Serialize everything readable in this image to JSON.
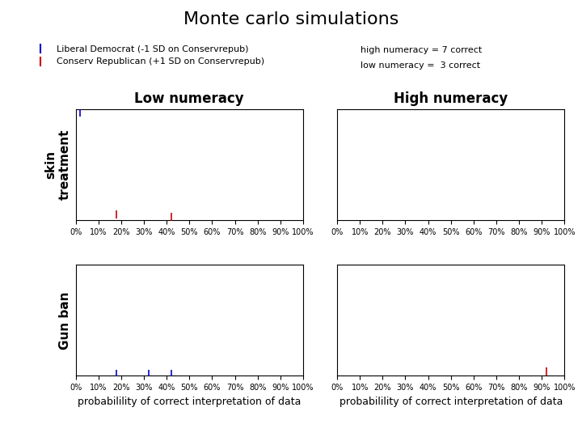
{
  "title": "Monte carlo simulations",
  "legend": "upper left",
  "annotations": [
    "high numeracy = 7 correct",
    "low numeracy =  3 correct"
  ],
  "chart_data": [
    {
      "type": "scatter",
      "title": "Low numeracy",
      "ylabel": "skin\ntreatment",
      "xlim": [
        0,
        1
      ],
      "ylim": [
        0,
        1
      ],
      "tick_labels": "x",
      "marker": "vertical line",
      "xticks": [
        {
          "value": 0.0,
          "label": "0%"
        },
        {
          "value": 0.1,
          "label": "10%"
        },
        {
          "value": 0.2,
          "label": "20%"
        },
        {
          "value": 0.3,
          "label": "30%"
        },
        {
          "value": 0.4,
          "label": "40%"
        },
        {
          "value": 0.5,
          "label": "50%"
        },
        {
          "value": 0.6,
          "label": "60%"
        },
        {
          "value": 0.7,
          "label": "70%"
        },
        {
          "value": 0.8,
          "label": "80%"
        },
        {
          "value": 0.9,
          "label": "90%"
        },
        {
          "value": 1.0,
          "label": "100%"
        }
      ],
      "series": [
        {
          "name": "Liberal Democrat (-1 SD on Conservrepub)",
          "color": "#0000cc",
          "x": [
            0.02
          ],
          "values": [
            0.97
          ]
        },
        {
          "name": "Conserv Republican (+1 SD on Conservrepub)",
          "color": "#cc0000",
          "x": [
            0.18,
            0.42
          ],
          "values": [
            0.05,
            0.03
          ]
        }
      ]
    },
    {
      "type": "scatter",
      "title": "High numeracy",
      "xlim": [
        0,
        1
      ],
      "ylim": [
        0,
        1
      ],
      "tick_labels": "x",
      "marker": "vertical line",
      "xticks": [
        {
          "value": 0.0,
          "label": "0%"
        },
        {
          "value": 0.1,
          "label": "10%"
        },
        {
          "value": 0.2,
          "label": "20%"
        },
        {
          "value": 0.3,
          "label": "30%"
        },
        {
          "value": 0.4,
          "label": "40%"
        },
        {
          "value": 0.5,
          "label": "50%"
        },
        {
          "value": 0.6,
          "label": "60%"
        },
        {
          "value": 0.7,
          "label": "70%"
        },
        {
          "value": 0.8,
          "label": "80%"
        },
        {
          "value": 0.9,
          "label": "90%"
        },
        {
          "value": 1.0,
          "label": "100%"
        }
      ],
      "series": []
    },
    {
      "type": "scatter",
      "ylabel": "Gun ban",
      "xlabel": "probabilility of correct interpretation of data",
      "xlim": [
        0,
        1
      ],
      "ylim": [
        0,
        1
      ],
      "tick_labels": "x",
      "marker": "vertical line",
      "xticks": [
        {
          "value": 0.0,
          "label": "0%"
        },
        {
          "value": 0.1,
          "label": "10%"
        },
        {
          "value": 0.2,
          "label": "20%"
        },
        {
          "value": 0.3,
          "label": "30%"
        },
        {
          "value": 0.4,
          "label": "40%"
        },
        {
          "value": 0.5,
          "label": "50%"
        },
        {
          "value": 0.6,
          "label": "60%"
        },
        {
          "value": 0.7,
          "label": "70%"
        },
        {
          "value": 0.8,
          "label": "80%"
        },
        {
          "value": 0.9,
          "label": "90%"
        },
        {
          "value": 1.0,
          "label": "100%"
        }
      ],
      "series": [
        {
          "name": "Liberal Democrat (-1 SD on Conservrepub)",
          "color": "#0000cc",
          "x": [
            0.18,
            0.32,
            0.42
          ],
          "values": [
            0.02,
            0.02,
            0.02
          ]
        }
      ]
    },
    {
      "type": "scatter",
      "xlabel": "probabilility of correct interpretation of data",
      "xlim": [
        0,
        1
      ],
      "ylim": [
        0,
        1
      ],
      "tick_labels": "x",
      "marker": "vertical line",
      "xticks": [
        {
          "value": 0.0,
          "label": "0%"
        },
        {
          "value": 0.1,
          "label": "10%"
        },
        {
          "value": 0.2,
          "label": "20%"
        },
        {
          "value": 0.3,
          "label": "30%"
        },
        {
          "value": 0.4,
          "label": "40%"
        },
        {
          "value": 0.5,
          "label": "50%"
        },
        {
          "value": 0.6,
          "label": "60%"
        },
        {
          "value": 0.7,
          "label": "70%"
        },
        {
          "value": 0.8,
          "label": "80%"
        },
        {
          "value": 0.9,
          "label": "90%"
        },
        {
          "value": 1.0,
          "label": "100%"
        }
      ],
      "series": [
        {
          "name": "Conserv Republican (+1 SD on Conservrepub)",
          "color": "#cc0000",
          "x": [
            0.92
          ],
          "values": [
            0.04
          ]
        }
      ]
    }
  ]
}
